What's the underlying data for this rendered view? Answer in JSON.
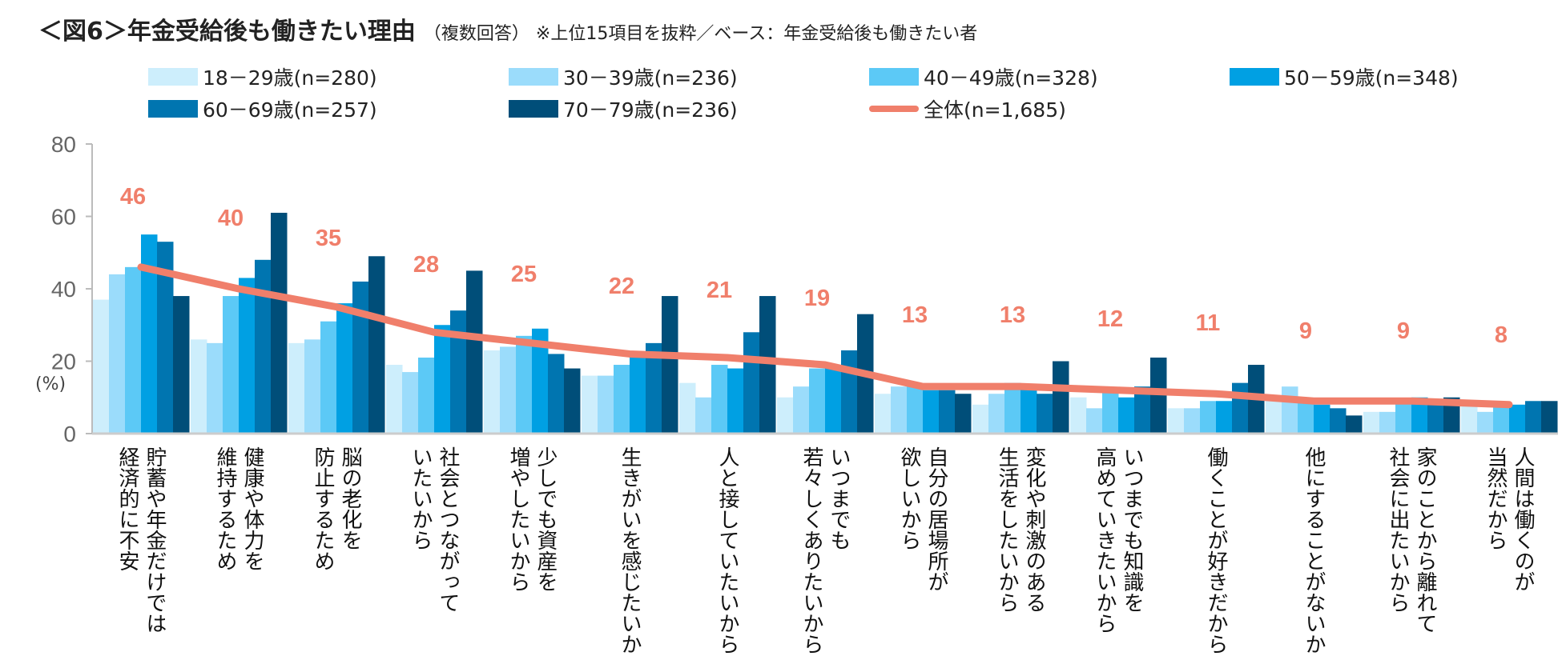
{
  "title": {
    "main": "＜図6＞年金受給後も働きたい理由",
    "sub": "（複数回答）",
    "note": "※上位15項目を抜粋／ベース：年金受給後も働きたい者"
  },
  "chart_data": {
    "type": "bar",
    "ylabel": "(%)",
    "ylim": [
      0,
      80
    ],
    "yticks": [
      0,
      20,
      40,
      60,
      80
    ],
    "grid": false,
    "legend_position": "top",
    "categories": [
      [
        "貯蓄や年金だけでは",
        "経済的に不安"
      ],
      [
        "健康や体力を",
        "維持するため"
      ],
      [
        "脳の老化を",
        "防止するため"
      ],
      [
        "社会とつながって",
        "いたいから"
      ],
      [
        "少しでも資産を",
        "増やしたいから"
      ],
      [
        "生きがいを感じたいから"
      ],
      [
        "人と接していたいから"
      ],
      [
        "いつまでも",
        "若々しくありたいから"
      ],
      [
        "自分の居場所が",
        "欲しいから"
      ],
      [
        "変化や刺激のある",
        "生活をしたいから"
      ],
      [
        "いつまでも知識を",
        "高めていきたいから"
      ],
      [
        "働くことが好きだから"
      ],
      [
        "他にすることがないから"
      ],
      [
        "家のことから離れて",
        "社会に出たいから"
      ],
      [
        "人間は働くのが",
        "当然だから"
      ]
    ],
    "series": [
      {
        "name": "18－29歳(n=280)",
        "type": "bar",
        "color": "#cdeefc",
        "values": [
          37,
          26,
          25,
          19,
          23,
          16,
          14,
          10,
          11,
          8,
          10,
          7,
          9,
          6,
          8
        ]
      },
      {
        "name": "30－39歳(n=236)",
        "type": "bar",
        "color": "#9bdcfb",
        "values": [
          44,
          25,
          26,
          17,
          24,
          16,
          10,
          13,
          13,
          11,
          7,
          7,
          13,
          6,
          6
        ]
      },
      {
        "name": "40－49歳(n=328)",
        "type": "bar",
        "color": "#5cc9f6",
        "values": [
          46,
          38,
          31,
          21,
          27,
          19,
          19,
          18,
          13,
          14,
          12,
          9,
          9,
          9,
          8
        ]
      },
      {
        "name": "50－59歳(n=348)",
        "type": "bar",
        "color": "#00a0e3",
        "values": [
          55,
          43,
          36,
          30,
          29,
          21,
          18,
          19,
          12,
          13,
          10,
          9,
          8,
          10,
          8
        ]
      },
      {
        "name": "60－69歳(n=257)",
        "type": "bar",
        "color": "#0075b0",
        "values": [
          53,
          48,
          42,
          34,
          22,
          25,
          28,
          23,
          12,
          11,
          13,
          14,
          7,
          9,
          9
        ]
      },
      {
        "name": "70－79歳(n=236)",
        "type": "bar",
        "color": "#004e79",
        "values": [
          38,
          61,
          49,
          45,
          18,
          38,
          38,
          33,
          11,
          20,
          21,
          19,
          5,
          10,
          9
        ]
      },
      {
        "name": "全体(n=1,685)",
        "type": "line",
        "color": "#f07f6b",
        "values": [
          46,
          40,
          35,
          28,
          25,
          22,
          21,
          19,
          13,
          13,
          12,
          11,
          9,
          9,
          8
        ]
      }
    ]
  }
}
